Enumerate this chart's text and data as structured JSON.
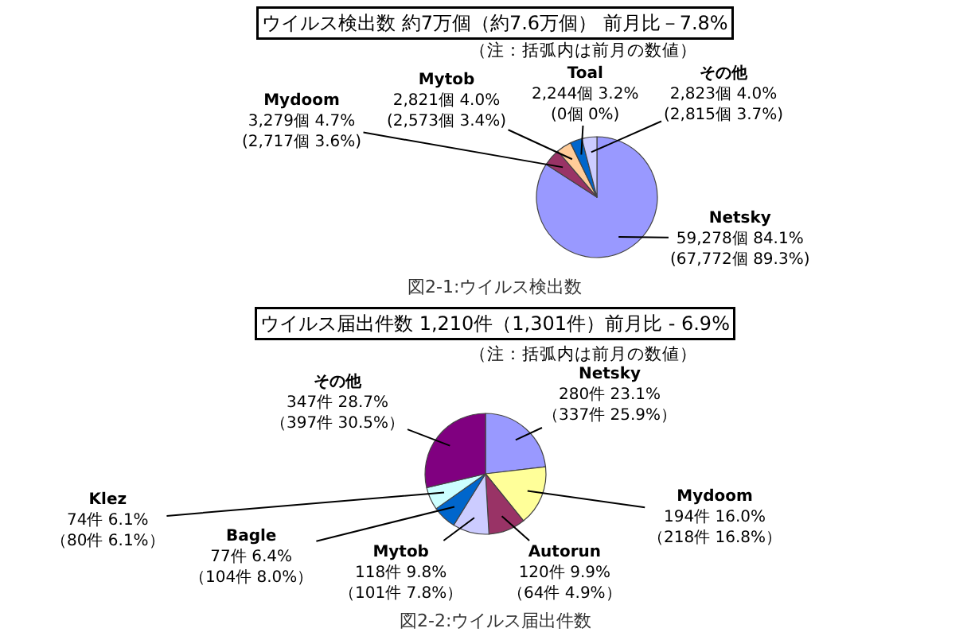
{
  "chart_data": [
    {
      "type": "pie",
      "title": "ウイルス検出数 約7万個（約7.6万個） 前月比－7.8%",
      "subtitle": "（注：括弧内は前月の数値）",
      "categories": [
        "Netsky",
        "Mydoom",
        "Mytob",
        "Toal",
        "その他"
      ],
      "values": [
        59278,
        3279,
        2821,
        2244,
        2823
      ],
      "colors": [
        "#9999ff",
        "#993366",
        "#ffcc99",
        "#0066cc",
        "#ccccff"
      ],
      "value_labels": [
        "59,278個 84.1%\n(67,772個 89.3%)",
        "3,279個 4.7%\n(2,717個 3.6%)",
        "2,821個 4.0%\n(2,573個 3.4%)",
        "2,244個 3.2%\n(0個 0%)",
        "2,823個 4.0%\n(2,815個 3.7%)"
      ],
      "annotations": [
        "図2-1:ウイルス検出数"
      ]
    },
    {
      "type": "pie",
      "title": "ウイルス届出件数 1,210件（1,301件）前月比 - 6.9%",
      "subtitle": "（注：括弧内は前月の数値）",
      "categories": [
        "Netsky",
        "Mydoom",
        "Autorun",
        "Mytob",
        "Bagle",
        "Klez",
        "その他"
      ],
      "values": [
        280,
        194,
        120,
        118,
        77,
        74,
        347
      ],
      "colors": [
        "#9999ff",
        "#ffff99",
        "#993366",
        "#ccccff",
        "#0066cc",
        "#ccffff",
        "#800080"
      ],
      "value_labels": [
        "280件 23.1%\n（337件 25.9%）",
        "194件 16.0%\n（218件 16.8%）",
        "120件 9.9%\n（64件 4.9%）",
        "118件 9.8%\n（101件 7.8%）",
        "77件 6.4%\n（104件 8.0%）",
        "74件 6.1%\n（80件 6.1%）",
        "347件 28.7%\n（397件 30.5%）"
      ],
      "annotations": [
        "図2-2:ウイルス届出件数"
      ]
    }
  ]
}
